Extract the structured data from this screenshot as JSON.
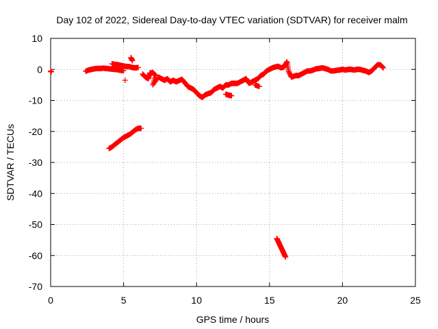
{
  "chart_data": {
    "type": "scatter",
    "title": "Day 102 of 2022, Sidereal Day-to-day VTEC variation (SDTVAR) for receiver malm",
    "xlabel": "GPS time / hours",
    "ylabel": "SDTVAR / TECUs",
    "xlim": [
      0,
      25
    ],
    "ylim": [
      -70,
      10
    ],
    "xticks": [
      0,
      5,
      10,
      15,
      20,
      25
    ],
    "yticks": [
      -70,
      -60,
      -50,
      -40,
      -30,
      -20,
      -10,
      0,
      10
    ],
    "grid": true,
    "marker": "+",
    "color": "#ff0000",
    "series": [
      {
        "name": "main-band",
        "points": [
          [
            0.0,
            -0.5
          ],
          [
            0.05,
            -0.8
          ],
          [
            2.4,
            -0.6
          ],
          [
            2.6,
            -0.2
          ],
          [
            2.8,
            0.0
          ],
          [
            3.0,
            0.2
          ],
          [
            3.2,
            0.3
          ],
          [
            3.4,
            0.3
          ],
          [
            3.6,
            0.4
          ],
          [
            3.8,
            0.3
          ],
          [
            4.0,
            0.2
          ],
          [
            4.2,
            0.1
          ],
          [
            4.4,
            0.0
          ],
          [
            4.6,
            -0.1
          ],
          [
            4.8,
            -0.3
          ],
          [
            5.0,
            -0.4
          ],
          [
            4.2,
            1.8
          ],
          [
            4.4,
            1.6
          ],
          [
            4.6,
            1.5
          ],
          [
            4.8,
            1.3
          ],
          [
            5.0,
            1.1
          ],
          [
            5.2,
            0.9
          ],
          [
            5.4,
            0.9
          ],
          [
            5.6,
            0.6
          ],
          [
            5.8,
            0.5
          ],
          [
            6.0,
            0.6
          ],
          [
            5.1,
            -3.5
          ],
          [
            5.5,
            3.8
          ],
          [
            5.6,
            2.8
          ],
          [
            6.3,
            -1.5
          ],
          [
            6.5,
            -2.5
          ],
          [
            6.7,
            -3.0
          ],
          [
            6.8,
            -1.2
          ],
          [
            7.0,
            -1.0
          ],
          [
            7.2,
            -2.0
          ],
          [
            7.0,
            -5.0
          ],
          [
            7.4,
            -2.5
          ],
          [
            7.6,
            -3.0
          ],
          [
            7.8,
            -3.5
          ],
          [
            8.0,
            -3.0
          ],
          [
            8.2,
            -4.0
          ],
          [
            8.4,
            -3.5
          ],
          [
            8.6,
            -4.0
          ],
          [
            8.8,
            -3.6
          ],
          [
            9.0,
            -3.2
          ],
          [
            9.2,
            -4.3
          ],
          [
            9.4,
            -5.5
          ],
          [
            9.6,
            -6.0
          ],
          [
            9.8,
            -6.5
          ],
          [
            10.0,
            -7.5
          ],
          [
            10.2,
            -8.5
          ],
          [
            10.4,
            -9.0
          ],
          [
            10.6,
            -8.2
          ],
          [
            10.8,
            -7.8
          ],
          [
            11.0,
            -7.5
          ],
          [
            11.2,
            -6.5
          ],
          [
            11.4,
            -6.0
          ],
          [
            11.6,
            -5.5
          ],
          [
            11.8,
            -6.0
          ],
          [
            12.0,
            -5.0
          ],
          [
            12.2,
            -5.0
          ],
          [
            12.4,
            -4.5
          ],
          [
            12.6,
            -4.5
          ],
          [
            12.8,
            -4.5
          ],
          [
            13.0,
            -4.0
          ],
          [
            13.2,
            -3.5
          ],
          [
            13.4,
            -3.0
          ],
          [
            13.6,
            -4.5
          ],
          [
            13.8,
            -4.0
          ],
          [
            14.0,
            -3.5
          ],
          [
            14.2,
            -3.0
          ],
          [
            14.4,
            -2.0
          ],
          [
            14.6,
            -1.5
          ],
          [
            14.8,
            -0.5
          ],
          [
            15.0,
            0.0
          ],
          [
            15.2,
            0.5
          ],
          [
            15.4,
            0.8
          ],
          [
            15.6,
            1.0
          ],
          [
            15.8,
            0.5
          ],
          [
            16.0,
            0.8
          ],
          [
            16.2,
            2.5
          ],
          [
            16.3,
            -0.5
          ],
          [
            16.5,
            -2.5
          ],
          [
            16.8,
            -2.0
          ],
          [
            17.0,
            -2.0
          ],
          [
            17.2,
            -1.5
          ],
          [
            17.4,
            -1.0
          ],
          [
            17.6,
            -0.5
          ],
          [
            17.8,
            -0.5
          ],
          [
            18.0,
            -0.2
          ],
          [
            18.2,
            0.2
          ],
          [
            18.4,
            0.3
          ],
          [
            18.6,
            0.5
          ],
          [
            18.8,
            0.3
          ],
          [
            19.0,
            0.0
          ],
          [
            19.2,
            -0.5
          ],
          [
            19.4,
            -0.5
          ],
          [
            19.6,
            -0.3
          ],
          [
            19.8,
            -0.2
          ],
          [
            20.0,
            0.0
          ],
          [
            20.2,
            -0.2
          ],
          [
            20.4,
            0.0
          ],
          [
            20.6,
            0.0
          ],
          [
            20.8,
            -0.2
          ],
          [
            21.0,
            0.0
          ],
          [
            21.2,
            0.0
          ],
          [
            21.4,
            -0.3
          ],
          [
            21.6,
            -0.5
          ],
          [
            21.8,
            -1.0
          ],
          [
            22.0,
            -0.5
          ],
          [
            22.2,
            0.5
          ],
          [
            22.4,
            1.5
          ],
          [
            22.6,
            1.5
          ],
          [
            22.8,
            0.5
          ],
          [
            12.0,
            -8.0
          ],
          [
            12.2,
            -8.3
          ],
          [
            12.4,
            -8.5
          ],
          [
            14.0,
            -5.0
          ],
          [
            14.3,
            -5.5
          ]
        ]
      },
      {
        "name": "lower-arc",
        "points": [
          [
            4.0,
            -25.5
          ],
          [
            4.2,
            -25.0
          ],
          [
            4.4,
            -24.2
          ],
          [
            4.6,
            -23.5
          ],
          [
            4.8,
            -22.7
          ],
          [
            5.0,
            -22.0
          ],
          [
            5.2,
            -21.5
          ],
          [
            5.4,
            -21.0
          ],
          [
            5.6,
            -20.3
          ],
          [
            5.8,
            -19.5
          ],
          [
            6.0,
            -19.0
          ],
          [
            6.2,
            -19.0
          ]
        ]
      },
      {
        "name": "deep-drop",
        "points": [
          [
            15.5,
            -54.5
          ],
          [
            15.6,
            -55.5
          ],
          [
            15.7,
            -56.5
          ],
          [
            15.8,
            -57.5
          ],
          [
            15.9,
            -58.5
          ],
          [
            16.0,
            -59.5
          ],
          [
            16.1,
            -60.5
          ]
        ]
      }
    ]
  }
}
